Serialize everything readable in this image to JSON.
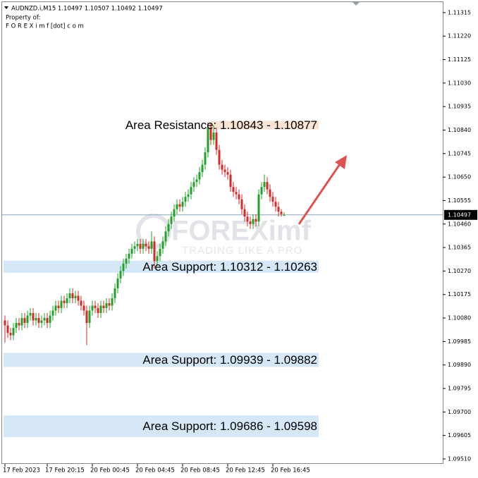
{
  "chart_data": {
    "type": "candlestick",
    "title": "AUDNZD.i,M15  1.10497 1.10507 1.10492 1.10497",
    "subtitle": [
      "Property of:",
      "F O R E X i m f [dot] c o m"
    ],
    "watermark": {
      "brand": "FOREXimf",
      "tagline": "TRADING LIKE A PRO"
    },
    "up_color": "#22a22a",
    "down_color": "#d42a2a",
    "current_price": 1.10497,
    "current_price_label": "1.10497",
    "ylim": [
      1.0949,
      1.11366
    ],
    "yticks": [
      1.11315,
      {
        "value": 1.1122,
        "label": "1.11220"
      },
      1.11125,
      {
        "value": 1.1103,
        "label": "1.11030"
      },
      1.10935,
      {
        "value": 1.1084,
        "label": "1.10840"
      },
      1.10745,
      {
        "value": 1.1065,
        "label": "1.10650"
      },
      1.10555,
      {
        "value": 1.1046,
        "label": "1.10460"
      },
      1.10365,
      {
        "value": 1.1027,
        "label": "1.10270"
      },
      1.10175,
      {
        "value": 1.1008,
        "label": "1.10080"
      },
      1.09985,
      {
        "value": 1.0989,
        "label": "1.09890"
      },
      1.09795,
      {
        "value": 1.097,
        "label": "1.09700"
      },
      1.09605,
      {
        "value": 1.0951,
        "label": "1.09510"
      }
    ],
    "zones": [
      {
        "label": "Area Resistance: 1.10843 - 1.10877",
        "low": 1.10843,
        "high": 1.10877,
        "color": "#fbe3d4"
      },
      {
        "label": "Area Support: 1.10312 - 1.10263",
        "low": 1.10263,
        "high": 1.10312,
        "color": "#d6e8f8"
      },
      {
        "label": "Area Support: 1.09939 - 1.09882",
        "low": 1.09882,
        "high": 1.09939,
        "color": "#d6e8f8"
      },
      {
        "label": "Area Support: 1.09686 - 1.09598",
        "low": 1.09598,
        "high": 1.09686,
        "color": "#d6e8f8"
      }
    ],
    "categories": [
      "17 Feb 2023",
      null,
      null,
      null,
      null,
      null,
      null,
      null,
      null,
      null,
      null,
      null,
      null,
      null,
      null,
      "17 Feb 20:15",
      null,
      null,
      null,
      null,
      null,
      null,
      null,
      null,
      null,
      null,
      null,
      null,
      null,
      null,
      null,
      "20 Feb 00:45",
      null,
      null,
      null,
      null,
      null,
      null,
      null,
      null,
      null,
      null,
      null,
      null,
      null,
      null,
      null,
      "20 Feb 04:45",
      null,
      null,
      null,
      null,
      null,
      null,
      null,
      null,
      null,
      null,
      null,
      null,
      null,
      null,
      null,
      "20 Feb 08:45",
      null,
      null,
      null,
      null,
      null,
      null,
      null,
      null,
      null,
      null,
      null,
      null,
      null,
      null,
      null,
      "20 Feb 12:45",
      null,
      null,
      null,
      null,
      null,
      null,
      null,
      null,
      null,
      null,
      null,
      null,
      null,
      null,
      null,
      "20 Feb 16:45",
      null,
      null,
      null,
      null
    ],
    "candles": [
      [
        1.1007,
        1.1009,
        1.0998,
        1.1005
      ],
      [
        1.1005,
        1.1007,
        1.1,
        1.1002
      ],
      [
        1.1002,
        1.1004,
        1.0999,
        1.1001
      ],
      [
        1.1001,
        1.1006,
        1.0999,
        1.1004
      ],
      [
        1.1004,
        1.1008,
        1.1002,
        1.1006
      ],
      [
        1.1006,
        1.1008,
        1.1003,
        1.1005
      ],
      [
        1.1005,
        1.101,
        1.1003,
        1.1008
      ],
      [
        1.1008,
        1.101,
        1.1004,
        1.1006
      ],
      [
        1.1006,
        1.1011,
        1.1004,
        1.1009
      ],
      [
        1.1009,
        1.1012,
        1.1007,
        1.101
      ],
      [
        1.101,
        1.1012,
        1.1005,
        1.1007
      ],
      [
        1.1007,
        1.101,
        1.1005,
        1.1008
      ],
      [
        1.1008,
        1.101,
        1.1004,
        1.1006
      ],
      [
        1.1006,
        1.1009,
        1.1004,
        1.1007
      ],
      [
        1.1007,
        1.101,
        1.1005,
        1.1008
      ],
      [
        1.1008,
        1.101,
        1.1004,
        1.1006
      ],
      [
        1.1006,
        1.1011,
        1.1004,
        1.1009
      ],
      [
        1.1009,
        1.1013,
        1.1007,
        1.1011
      ],
      [
        1.1011,
        1.1015,
        1.1009,
        1.1013
      ],
      [
        1.1013,
        1.1015,
        1.101,
        1.1012
      ],
      [
        1.1012,
        1.1017,
        1.101,
        1.1015
      ],
      [
        1.1015,
        1.1017,
        1.1012,
        1.1014
      ],
      [
        1.1014,
        1.1018,
        1.1012,
        1.1016
      ],
      [
        1.1016,
        1.102,
        1.1014,
        1.1018
      ],
      [
        1.1018,
        1.102,
        1.1014,
        1.1016
      ],
      [
        1.1016,
        1.1019,
        1.1014,
        1.1017
      ],
      [
        1.1017,
        1.1019,
        1.1013,
        1.1015
      ],
      [
        1.1015,
        1.1017,
        1.1011,
        1.1013
      ],
      [
        1.1013,
        1.1015,
        1.1009,
        1.1011
      ],
      [
        1.1011,
        1.1013,
        1.0997,
        1.1006
      ],
      [
        1.1006,
        1.1013,
        1.1004,
        1.1011
      ],
      [
        1.1011,
        1.1015,
        1.1009,
        1.1013
      ],
      [
        1.1013,
        1.1015,
        1.101,
        1.1012
      ],
      [
        1.1012,
        1.1014,
        1.1008,
        1.101
      ],
      [
        1.101,
        1.1015,
        1.1008,
        1.1013
      ],
      [
        1.1013,
        1.1015,
        1.101,
        1.1012
      ],
      [
        1.1012,
        1.1016,
        1.101,
        1.1014
      ],
      [
        1.1014,
        1.1016,
        1.1011,
        1.1013
      ],
      [
        1.1013,
        1.1018,
        1.1011,
        1.1016
      ],
      [
        1.1016,
        1.1022,
        1.1014,
        1.102
      ],
      [
        1.102,
        1.1026,
        1.1018,
        1.1024
      ],
      [
        1.1024,
        1.1029,
        1.1022,
        1.1027
      ],
      [
        1.1027,
        1.1032,
        1.1025,
        1.103
      ],
      [
        1.103,
        1.1034,
        1.1028,
        1.1032
      ],
      [
        1.1032,
        1.1036,
        1.103,
        1.1034
      ],
      [
        1.1034,
        1.1038,
        1.1032,
        1.1036
      ],
      [
        1.1036,
        1.1039,
        1.1034,
        1.1037
      ],
      [
        1.1037,
        1.104,
        1.1035,
        1.1038
      ],
      [
        1.1038,
        1.104,
        1.1034,
        1.1036
      ],
      [
        1.1036,
        1.104,
        1.1034,
        1.1038
      ],
      [
        1.1038,
        1.104,
        1.1035,
        1.1037
      ],
      [
        1.1037,
        1.1039,
        1.1034,
        1.1036
      ],
      [
        1.1036,
        1.1043,
        1.1034,
        1.1039
      ],
      [
        1.1039,
        1.1041,
        1.1028,
        1.1031
      ],
      [
        1.1031,
        1.1035,
        1.1029,
        1.1033
      ],
      [
        1.1033,
        1.1038,
        1.1031,
        1.1036
      ],
      [
        1.1036,
        1.1041,
        1.1034,
        1.1039
      ],
      [
        1.1039,
        1.1045,
        1.1037,
        1.1043
      ],
      [
        1.1043,
        1.1048,
        1.1041,
        1.1046
      ],
      [
        1.1046,
        1.1051,
        1.1044,
        1.1049
      ],
      [
        1.1049,
        1.1054,
        1.1047,
        1.1052
      ],
      [
        1.1052,
        1.1056,
        1.105,
        1.1054
      ],
      [
        1.1054,
        1.1056,
        1.1051,
        1.1053
      ],
      [
        1.1053,
        1.1057,
        1.1051,
        1.1055
      ],
      [
        1.1055,
        1.1059,
        1.1053,
        1.1057
      ],
      [
        1.1057,
        1.106,
        1.1055,
        1.1058
      ],
      [
        1.1058,
        1.1063,
        1.1056,
        1.1061
      ],
      [
        1.1061,
        1.1065,
        1.1059,
        1.1063
      ],
      [
        1.1063,
        1.1066,
        1.1061,
        1.1064
      ],
      [
        1.1064,
        1.1069,
        1.1062,
        1.1067
      ],
      [
        1.1067,
        1.1072,
        1.1065,
        1.107
      ],
      [
        1.107,
        1.1077,
        1.1068,
        1.1075
      ],
      [
        1.1075,
        1.1087,
        1.1073,
        1.1085
      ],
      [
        1.1085,
        1.1087,
        1.1078,
        1.108
      ],
      [
        1.108,
        1.1086,
        1.1078,
        1.1083
      ],
      [
        1.1083,
        1.1085,
        1.1074,
        1.1076
      ],
      [
        1.1076,
        1.1078,
        1.1068,
        1.107
      ],
      [
        1.107,
        1.1072,
        1.1066,
        1.1068
      ],
      [
        1.1068,
        1.107,
        1.1065,
        1.1067
      ],
      [
        1.1067,
        1.1069,
        1.1064,
        1.1066
      ],
      [
        1.1066,
        1.1068,
        1.1059,
        1.1061
      ],
      [
        1.1061,
        1.1063,
        1.1057,
        1.1059
      ],
      [
        1.1059,
        1.1061,
        1.1056,
        1.1058
      ],
      [
        1.1058,
        1.106,
        1.1054,
        1.1056
      ],
      [
        1.1056,
        1.1058,
        1.105,
        1.1052
      ],
      [
        1.1052,
        1.1054,
        1.1047,
        1.1049
      ],
      [
        1.1049,
        1.1051,
        1.1045,
        1.1047
      ],
      [
        1.1047,
        1.1049,
        1.1044,
        1.1046
      ],
      [
        1.1046,
        1.105,
        1.1044,
        1.1048
      ],
      [
        1.1048,
        1.105,
        1.1045,
        1.1047
      ],
      [
        1.1047,
        1.106,
        1.1045,
        1.1058
      ],
      [
        1.1058,
        1.1063,
        1.1056,
        1.1061
      ],
      [
        1.1061,
        1.1066,
        1.1059,
        1.1063
      ],
      [
        1.1063,
        1.1065,
        1.1058,
        1.106
      ],
      [
        1.106,
        1.1062,
        1.1055,
        1.1057
      ],
      [
        1.1057,
        1.1059,
        1.1053,
        1.1055
      ],
      [
        1.1055,
        1.1057,
        1.1051,
        1.1053
      ],
      [
        1.1053,
        1.1055,
        1.1049,
        1.1051
      ],
      [
        1.1051,
        1.1052,
        1.1049,
        1.105
      ],
      [
        1.10497,
        1.10507,
        1.10492,
        1.10497
      ]
    ]
  }
}
